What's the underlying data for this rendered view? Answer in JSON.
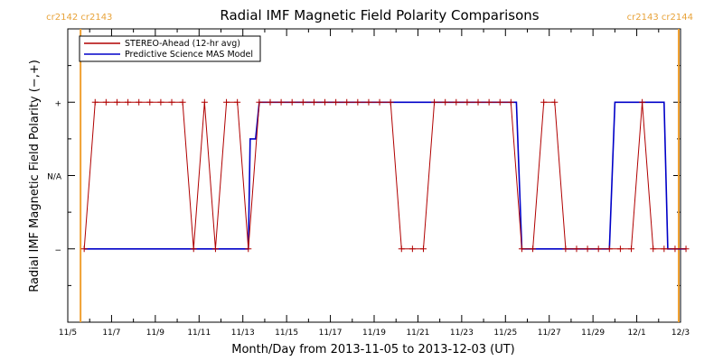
{
  "chart_data": {
    "type": "line",
    "title": "Radial IMF Magnetic Field Polarity Comparisons",
    "xlabel": "Month/Day from 2013-11-05 to 2013-12-03 (UT)",
    "ylabel": "Radial IMF Magnetic Field Polarity (−,+)",
    "xlim": [
      "2013-11-05",
      "2013-12-03"
    ],
    "x_ticks": [
      "11/5",
      "11/7",
      "11/9",
      "11/11",
      "11/13",
      "11/15",
      "11/17",
      "11/19",
      "11/21",
      "11/23",
      "11/25",
      "11/27",
      "11/29",
      "12/1",
      "12/3"
    ],
    "y_categories": [
      "−",
      "N/A",
      "+"
    ],
    "y_values": [
      -1,
      0,
      1
    ],
    "ylim": [
      -2,
      2
    ],
    "legend_position": "top-left",
    "carrington_markers": [
      {
        "x": "2013-11-05 14:00",
        "labels": [
          "cr2142",
          "cr2143"
        ],
        "label_side": "right"
      },
      {
        "x": "2013-12-02 22:00",
        "labels": [
          "cr2143",
          "cr2144"
        ],
        "label_side": "left"
      }
    ],
    "series": [
      {
        "name": "STEREO-Ahead (12-hr avg)",
        "color": "#b00000",
        "marker": "plus",
        "points": [
          [
            "2013-11-05 18:00",
            -1
          ],
          [
            "2013-11-06 06:00",
            1
          ],
          [
            "2013-11-06 18:00",
            1
          ],
          [
            "2013-11-07 06:00",
            1
          ],
          [
            "2013-11-07 18:00",
            1
          ],
          [
            "2013-11-08 06:00",
            1
          ],
          [
            "2013-11-08 18:00",
            1
          ],
          [
            "2013-11-09 06:00",
            1
          ],
          [
            "2013-11-09 18:00",
            1
          ],
          [
            "2013-11-10 06:00",
            1
          ],
          [
            "2013-11-10 18:00",
            -1
          ],
          [
            "2013-11-11 06:00",
            1
          ],
          [
            "2013-11-11 18:00",
            -1
          ],
          [
            "2013-11-12 06:00",
            1
          ],
          [
            "2013-11-12 18:00",
            1
          ],
          [
            "2013-11-13 06:00",
            -1
          ],
          [
            "2013-11-13 18:00",
            1
          ],
          [
            "2013-11-14 06:00",
            1
          ],
          [
            "2013-11-14 18:00",
            1
          ],
          [
            "2013-11-15 06:00",
            1
          ],
          [
            "2013-11-15 18:00",
            1
          ],
          [
            "2013-11-16 06:00",
            1
          ],
          [
            "2013-11-16 18:00",
            1
          ],
          [
            "2013-11-17 06:00",
            1
          ],
          [
            "2013-11-17 18:00",
            1
          ],
          [
            "2013-11-18 06:00",
            1
          ],
          [
            "2013-11-18 18:00",
            1
          ],
          [
            "2013-11-19 06:00",
            1
          ],
          [
            "2013-11-19 18:00",
            1
          ],
          [
            "2013-11-20 06:00",
            -1
          ],
          [
            "2013-11-20 18:00",
            -1
          ],
          [
            "2013-11-21 06:00",
            -1
          ],
          [
            "2013-11-21 18:00",
            1
          ],
          [
            "2013-11-22 06:00",
            1
          ],
          [
            "2013-11-22 18:00",
            1
          ],
          [
            "2013-11-23 06:00",
            1
          ],
          [
            "2013-11-23 18:00",
            1
          ],
          [
            "2013-11-24 06:00",
            1
          ],
          [
            "2013-11-24 18:00",
            1
          ],
          [
            "2013-11-25 06:00",
            1
          ],
          [
            "2013-11-25 18:00",
            -1
          ],
          [
            "2013-11-26 06:00",
            -1
          ],
          [
            "2013-11-26 18:00",
            1
          ],
          [
            "2013-11-27 06:00",
            1
          ],
          [
            "2013-11-27 18:00",
            -1
          ],
          [
            "2013-11-28 06:00",
            -1
          ],
          [
            "2013-11-28 18:00",
            -1
          ],
          [
            "2013-11-29 06:00",
            -1
          ],
          [
            "2013-11-29 18:00",
            -1
          ],
          [
            "2013-11-30 06:00",
            -1
          ],
          [
            "2013-11-30 18:00",
            -1
          ],
          [
            "2013-12-01 06:00",
            1
          ],
          [
            "2013-12-01 18:00",
            -1
          ],
          [
            "2013-12-02 06:00",
            -1
          ],
          [
            "2013-12-02 18:00",
            -1
          ],
          [
            "2013-12-03 06:00",
            -1
          ]
        ]
      },
      {
        "name": "Predictive Science MAS Model",
        "color": "#0000c8",
        "marker": "none",
        "points": [
          [
            "2013-11-05 18:00",
            -1
          ],
          [
            "2013-11-13 06:00",
            -1
          ],
          [
            "2013-11-13 08:00",
            0.5
          ],
          [
            "2013-11-13 14:00",
            0.5
          ],
          [
            "2013-11-13 18:00",
            1
          ],
          [
            "2013-11-25 12:00",
            1
          ],
          [
            "2013-11-25 18:00",
            -1
          ],
          [
            "2013-11-29 18:00",
            -1
          ],
          [
            "2013-11-30 00:00",
            1
          ],
          [
            "2013-12-02 06:00",
            1
          ],
          [
            "2013-12-02 10:00",
            -1
          ],
          [
            "2013-12-03 06:00",
            -1
          ]
        ]
      }
    ]
  }
}
